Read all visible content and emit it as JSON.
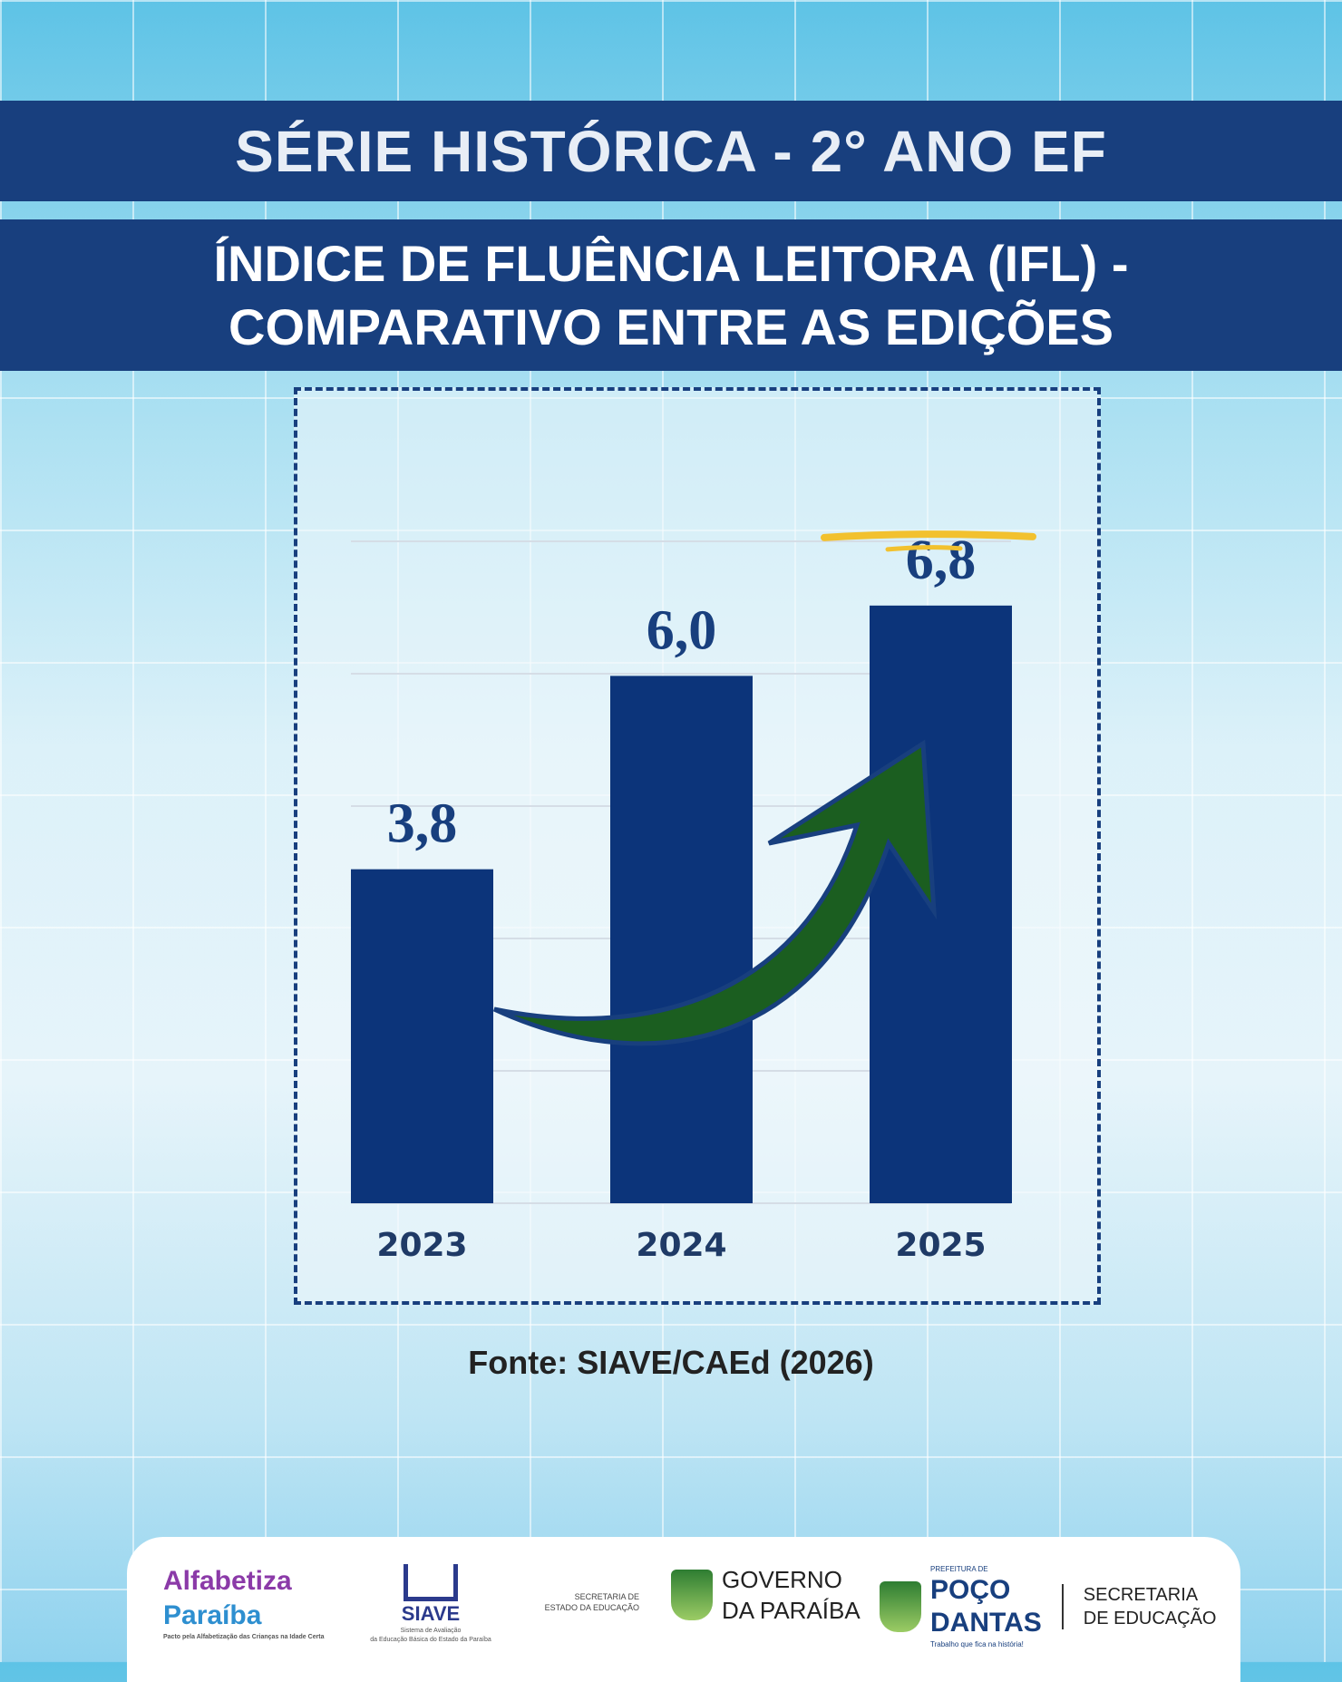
{
  "header": {
    "title": "SÉRIE HISTÓRICA - 2° ANO EF",
    "subtitle_line1": "ÍNDICE DE FLUÊNCIA LEITORA (IFL) -",
    "subtitle_line2": "COMPARATIVO ENTRE AS EDIÇÕES"
  },
  "chart_data": {
    "type": "bar",
    "title": "Índice de Fluência Leitora (IFL) - Comparativo entre as edições",
    "categories": [
      "2023",
      "2024",
      "2025"
    ],
    "values": [
      3.8,
      6.0,
      6.8
    ],
    "value_labels": [
      "3,8",
      "6,0",
      "6,8"
    ],
    "xlabel": "",
    "ylabel": "",
    "ylim": [
      0,
      7.5
    ],
    "grid": true,
    "bar_color": "#0c347a",
    "arrow_color": "#1b5e20",
    "highlight_color": "#f2c12e"
  },
  "source": "Fonte: SIAVE/CAEd (2026)",
  "footer": {
    "alfabetiza_line1": "Alfabetiza",
    "alfabetiza_line2": "Paraíba",
    "alfabetiza_tagline": "Pacto pela Alfabetização das Crianças na Idade Certa",
    "siave_name": "SIAVE",
    "siave_desc_1": "Sistema de Avaliação",
    "siave_desc_2": "da Educação Básica do Estado da Paraíba",
    "secretaria_estado": "SECRETARIA DE ESTADO DA EDUCAÇÃO",
    "governo_1": "GOVERNO",
    "governo_2": "DA PARAÍBA",
    "prefeitura": "PREFEITURA DE",
    "poco_1": "POÇO",
    "poco_2": "DANTAS",
    "poco_slogan": "Trabalho que fica na história!",
    "sec_edu_1": "SECRETARIA",
    "sec_edu_2": "DE EDUCAÇÃO"
  }
}
